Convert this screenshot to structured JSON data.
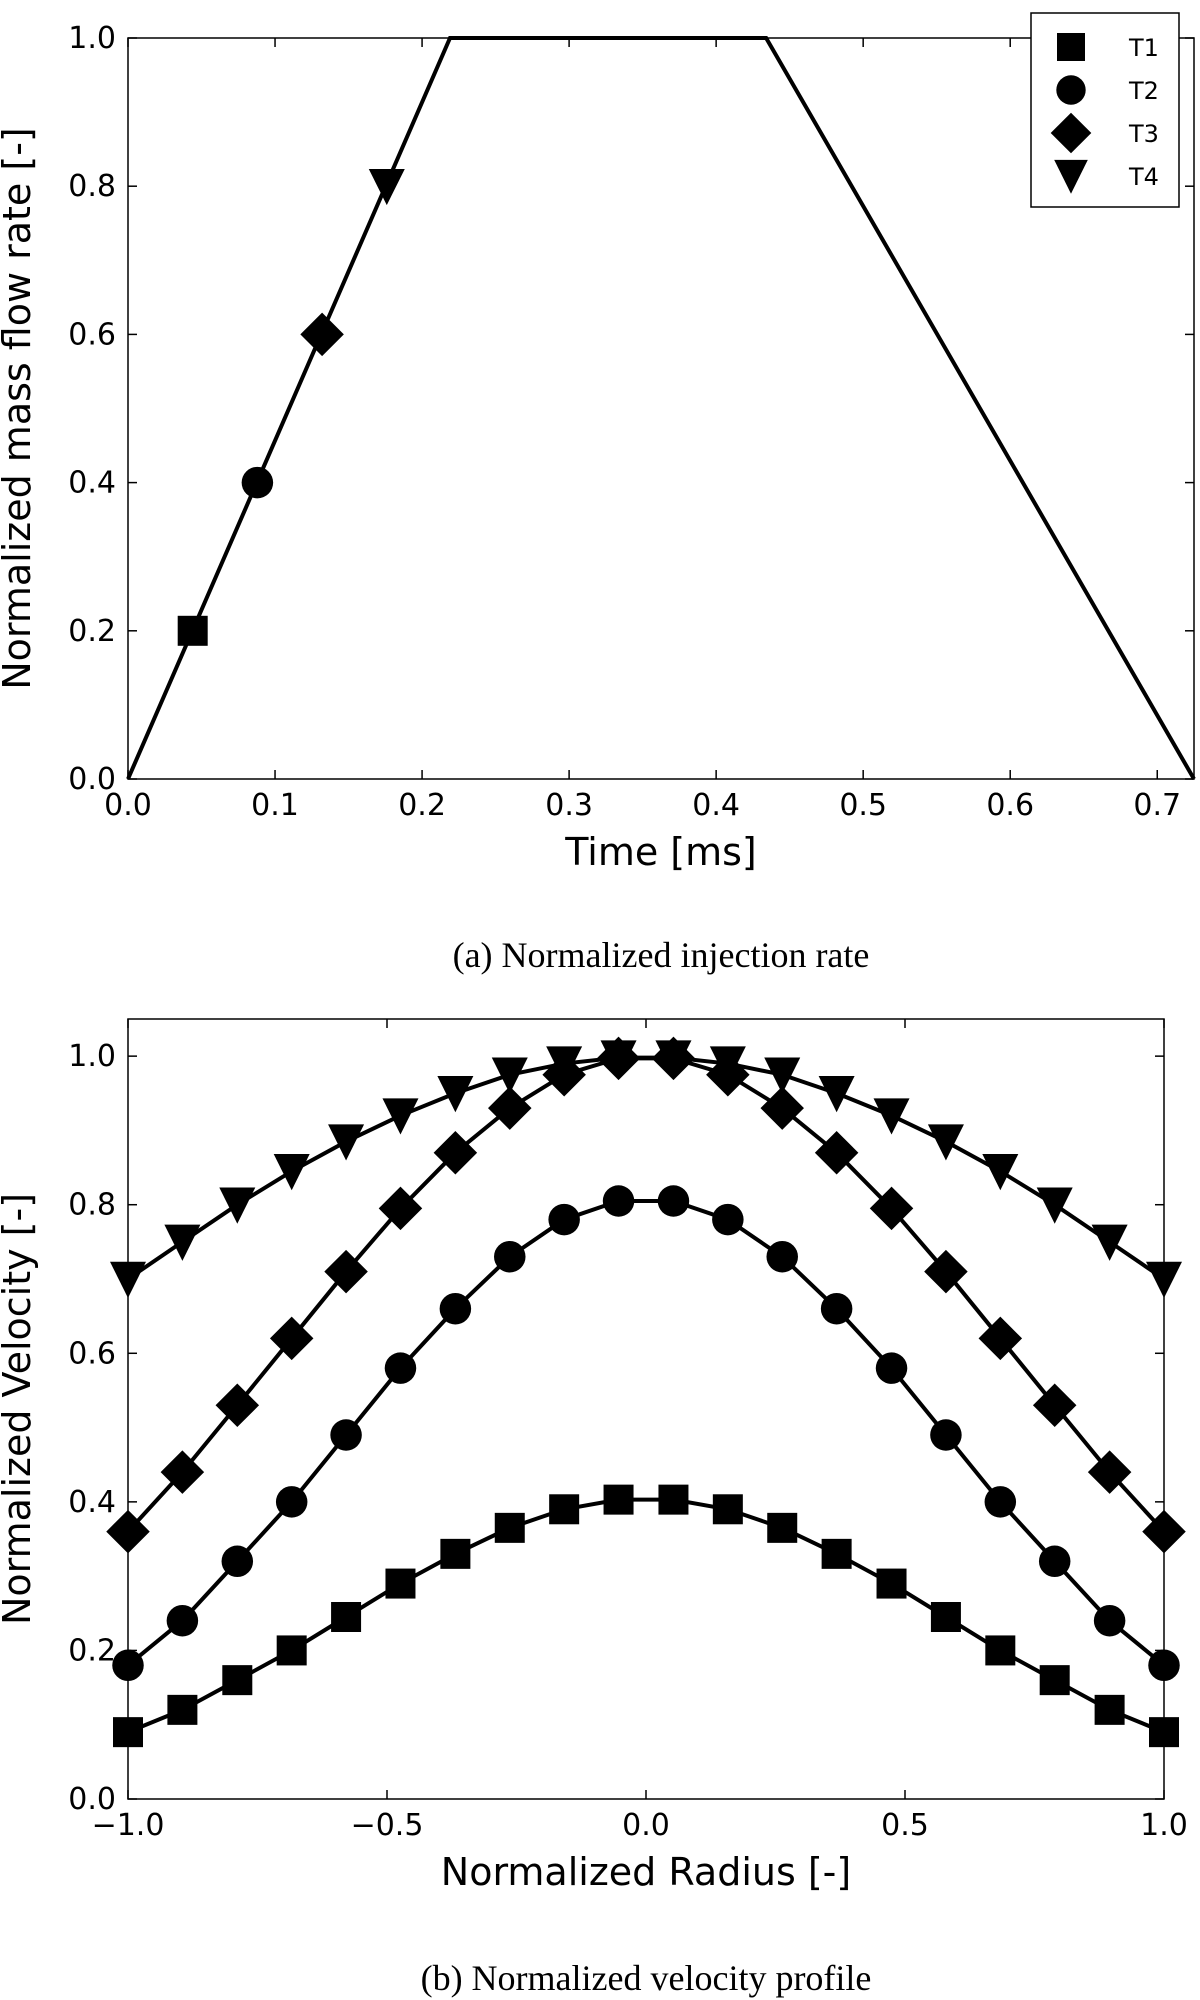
{
  "chart_data": [
    {
      "type": "line",
      "caption": "(a) Normalized injection rate",
      "xlabel": "Time [ms]",
      "ylabel": "Normalized mass flow rate [-]",
      "xlim": [
        0.0,
        0.725
      ],
      "ylim": [
        0.0,
        1.0
      ],
      "xticks": [
        0.0,
        0.1,
        0.2,
        0.3,
        0.4,
        0.5,
        0.6,
        0.7
      ],
      "xtick_labels": [
        "0.0",
        "0.1",
        "0.2",
        "0.3",
        "0.4",
        "0.5",
        "0.6",
        "0.7"
      ],
      "yticks": [
        0.0,
        0.2,
        0.4,
        0.6,
        0.8,
        1.0
      ],
      "ytick_labels": [
        "0.0",
        "0.2",
        "0.4",
        "0.6",
        "0.8",
        "1.0"
      ],
      "grid": false,
      "legend_position": "top-right",
      "series": [
        {
          "x": [
            0.0,
            0.219,
            0.434,
            0.725
          ],
          "y": [
            0.0,
            1.0,
            1.0,
            0.0
          ]
        }
      ],
      "markers": [
        {
          "name": "T1",
          "marker": "square",
          "x": 0.044,
          "y": 0.2
        },
        {
          "name": "T2",
          "marker": "circle",
          "x": 0.088,
          "y": 0.4
        },
        {
          "name": "T3",
          "marker": "diamond",
          "x": 0.132,
          "y": 0.6
        },
        {
          "name": "T4",
          "marker": "triangle-down",
          "x": 0.176,
          "y": 0.8
        }
      ]
    },
    {
      "type": "line",
      "caption": "(b) Normalized velocity profile",
      "xlabel": "Normalized Radius [-]",
      "ylabel": "Normalized Velocity [-]",
      "xlim": [
        -1.0,
        1.0
      ],
      "ylim": [
        0.0,
        1.05
      ],
      "xticks": [
        -1.0,
        -0.5,
        0.0,
        0.5,
        1.0
      ],
      "xtick_labels": [
        "−1.0",
        "−0.5",
        "0.0",
        "0.5",
        "1.0"
      ],
      "yticks": [
        0.0,
        0.2,
        0.4,
        0.6,
        0.8,
        1.0
      ],
      "ytick_labels": [
        "0.0",
        "0.2",
        "0.4",
        "0.6",
        "0.8",
        "1.0"
      ],
      "grid": false,
      "x": [
        -1.0,
        -0.895,
        -0.789,
        -0.684,
        -0.579,
        -0.474,
        -0.368,
        -0.263,
        -0.158,
        -0.053,
        0.053,
        0.158,
        0.263,
        0.368,
        0.474,
        0.579,
        0.684,
        0.789,
        0.895,
        1.0
      ],
      "series": [
        {
          "name": "T1",
          "marker": "square",
          "values": [
            0.09,
            0.12,
            0.16,
            0.2,
            0.245,
            0.29,
            0.33,
            0.365,
            0.39,
            0.403,
            0.403,
            0.39,
            0.365,
            0.33,
            0.29,
            0.245,
            0.2,
            0.16,
            0.12,
            0.09
          ]
        },
        {
          "name": "T2",
          "marker": "circle",
          "values": [
            0.18,
            0.24,
            0.32,
            0.4,
            0.49,
            0.58,
            0.66,
            0.73,
            0.78,
            0.805,
            0.805,
            0.78,
            0.73,
            0.66,
            0.58,
            0.49,
            0.4,
            0.32,
            0.24,
            0.18
          ]
        },
        {
          "name": "T3",
          "marker": "diamond",
          "values": [
            0.36,
            0.44,
            0.53,
            0.62,
            0.71,
            0.795,
            0.87,
            0.93,
            0.975,
            0.997,
            0.997,
            0.975,
            0.93,
            0.87,
            0.795,
            0.71,
            0.62,
            0.53,
            0.44,
            0.36
          ]
        },
        {
          "name": "T4",
          "marker": "triangle-down",
          "values": [
            0.7,
            0.75,
            0.8,
            0.845,
            0.885,
            0.92,
            0.95,
            0.975,
            0.99,
            0.998,
            0.998,
            0.99,
            0.975,
            0.95,
            0.92,
            0.885,
            0.845,
            0.8,
            0.75,
            0.7
          ]
        }
      ]
    }
  ]
}
